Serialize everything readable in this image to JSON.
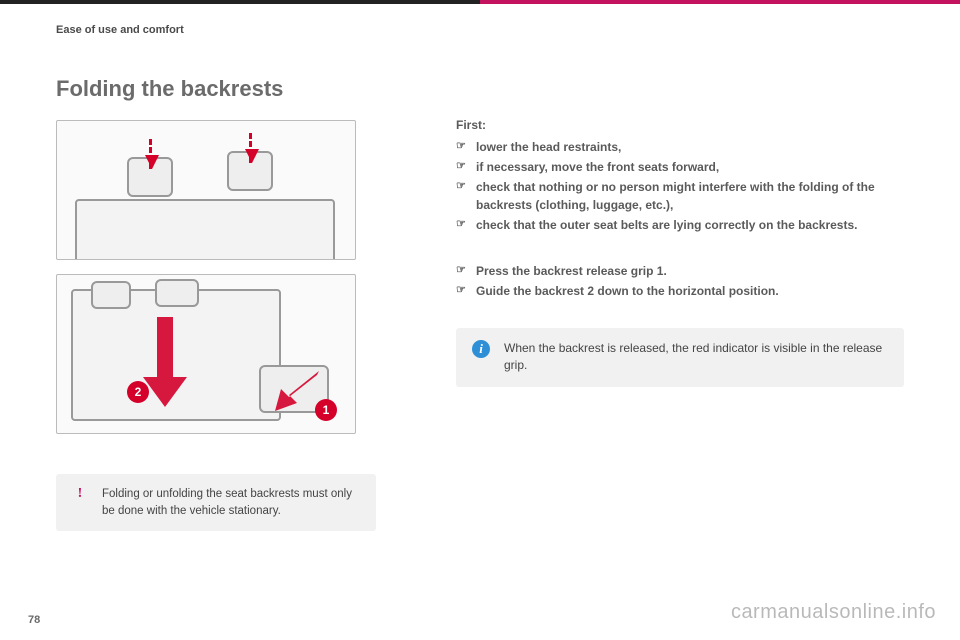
{
  "colors": {
    "accent": "#c3135f",
    "accent_red": "#d4002a",
    "info_blue": "#2f8fd6",
    "text_muted": "#5a5a5a",
    "box_bg": "#f1f1f1",
    "fig_border": "#bbbbbb"
  },
  "header": {
    "section_label": "Ease of use and comfort"
  },
  "title": "Folding the backrests",
  "instructions": {
    "intro": "First:",
    "prep_steps": [
      "lower the head restraints,",
      "if necessary, move the front seats forward,",
      "check that nothing or no person might interfere with the folding of the backrests (clothing, luggage, etc.),",
      "check that the outer seat belts are lying correctly on the backrests."
    ],
    "action_steps": [
      "Press the backrest release grip 1.",
      "Guide the backrest 2 down to the horizontal position."
    ]
  },
  "info_note": {
    "icon": "i",
    "text": "When the backrest is released, the red indicator is visible in the release grip."
  },
  "warning_note": {
    "icon": "!",
    "text": "Folding or unfolding the seat backrests must only be done with the vehicle stationary."
  },
  "figure2": {
    "badges": {
      "one": "1",
      "two": "2"
    }
  },
  "page_number": "78",
  "watermark": "carmanualsonline.info"
}
